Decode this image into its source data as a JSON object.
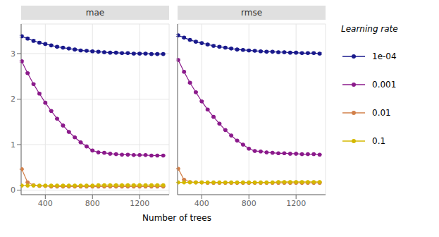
{
  "chart_data": [
    {
      "type": "line",
      "title": "mae",
      "xlabel": "Number of trees",
      "grid": true,
      "marker": "circle",
      "x": [
        200,
        250,
        300,
        350,
        400,
        450,
        500,
        550,
        600,
        650,
        700,
        750,
        800,
        850,
        900,
        950,
        1000,
        1050,
        1100,
        1150,
        1200,
        1250,
        1300,
        1350,
        1400
      ],
      "xlim": [
        195,
        1450
      ],
      "xticks": [
        400,
        800,
        1200
      ],
      "ylim": [
        -0.1,
        3.65
      ],
      "yticks": [
        0,
        1,
        2,
        3
      ],
      "series": [
        {
          "name": "1e-04",
          "color": "#1a1a8c",
          "values": [
            3.38,
            3.33,
            3.28,
            3.24,
            3.21,
            3.18,
            3.15,
            3.13,
            3.11,
            3.09,
            3.07,
            3.06,
            3.05,
            3.04,
            3.03,
            3.02,
            3.02,
            3.01,
            3.01,
            3.0,
            3.0,
            3.0,
            2.99,
            2.99,
            2.99
          ],
          "errors": [
            0.0199,
            0.01965,
            0.0194,
            0.0192,
            0.01905,
            0.0189,
            0.01875,
            0.01865,
            0.01855,
            0.01845,
            0.01835,
            0.0183,
            0.01825,
            0.0182,
            0.01815,
            0.0181,
            0.0181,
            0.01805,
            0.01805,
            0.018,
            0.018,
            0.018,
            0.01795,
            0.01795,
            0.01795
          ]
        },
        {
          "name": "0.001",
          "color": "#8b1a8b",
          "values": [
            2.83,
            2.57,
            2.33,
            2.12,
            1.92,
            1.74,
            1.57,
            1.42,
            1.28,
            1.16,
            1.05,
            0.96,
            0.87,
            0.83,
            0.82,
            0.8,
            0.79,
            0.78,
            0.78,
            0.77,
            0.77,
            0.77,
            0.76,
            0.76,
            0.76
          ],
          "errors": [
            0.01715,
            0.01585,
            0.01465,
            0.0136,
            0.0126,
            0.0117,
            0.01085,
            0.0101,
            0.0094,
            0.0088,
            0.00825,
            0.0078,
            0.00735,
            0.00715,
            0.0071,
            0.007,
            0.00695,
            0.0069,
            0.0069,
            0.00685,
            0.00685,
            0.00685,
            0.0068,
            0.0068,
            0.0068
          ]
        },
        {
          "name": "0.01",
          "color": "#d2804a",
          "values": [
            0.46,
            0.17,
            0.11,
            0.09,
            0.09,
            0.08,
            0.08,
            0.08,
            0.08,
            0.08,
            0.08,
            0.08,
            0.08,
            0.08,
            0.08,
            0.08,
            0.08,
            0.08,
            0.08,
            0.08,
            0.08,
            0.08,
            0.08,
            0.08,
            0.08
          ],
          "errors": [
            0.0053,
            0.00385,
            0.00355,
            0.00345,
            0.00345,
            0.0034,
            0.0034,
            0.0034,
            0.0034,
            0.0034,
            0.0034,
            0.0034,
            0.0034,
            0.0034,
            0.0034,
            0.0034,
            0.0034,
            0.0034,
            0.0034,
            0.0034,
            0.0034,
            0.0034,
            0.0034,
            0.0034,
            0.0034
          ]
        },
        {
          "name": "0.1",
          "color": "#d4b800",
          "values": [
            0.1,
            0.1,
            0.1,
            0.1,
            0.1,
            0.1,
            0.1,
            0.1,
            0.1,
            0.1,
            0.1,
            0.1,
            0.1,
            0.11,
            0.11,
            0.11,
            0.11,
            0.11,
            0.11,
            0.11,
            0.11,
            0.11,
            0.11,
            0.11,
            0.11
          ],
          "errors": [
            0.0035,
            0.0035,
            0.0035,
            0.0035,
            0.0035,
            0.0035,
            0.0035,
            0.0035,
            0.0035,
            0.0035,
            0.0035,
            0.0035,
            0.0035,
            0.00355,
            0.00355,
            0.00355,
            0.00355,
            0.00355,
            0.00355,
            0.00355,
            0.00355,
            0.00355,
            0.00355,
            0.00355,
            0.00355
          ]
        }
      ]
    },
    {
      "type": "line",
      "title": "rmse",
      "grid": true,
      "marker": "circle",
      "tick_labels": "x",
      "legend": "right",
      "legend_title": "Learning rate",
      "x": [
        200,
        250,
        300,
        350,
        400,
        450,
        500,
        550,
        600,
        650,
        700,
        750,
        800,
        850,
        900,
        950,
        1000,
        1050,
        1100,
        1150,
        1200,
        1250,
        1300,
        1350,
        1400
      ],
      "xlim": [
        195,
        1450
      ],
      "xticks": [
        400,
        800,
        1200
      ],
      "ylim": [
        -0.1,
        3.65
      ],
      "yticks": [
        0,
        1,
        2,
        3
      ],
      "series": [
        {
          "name": "1e-04",
          "color": "#1a1a8c",
          "values": [
            3.4,
            3.35,
            3.3,
            3.26,
            3.23,
            3.2,
            3.17,
            3.15,
            3.13,
            3.11,
            3.09,
            3.08,
            3.07,
            3.06,
            3.05,
            3.04,
            3.04,
            3.03,
            3.03,
            3.02,
            3.02,
            3.01,
            3.01,
            3.01,
            3.0
          ],
          "errors": [
            0.02,
            0.01975,
            0.0195,
            0.0193,
            0.01915,
            0.019,
            0.01885,
            0.01875,
            0.01865,
            0.01855,
            0.01845,
            0.0184,
            0.01835,
            0.0183,
            0.01825,
            0.0182,
            0.0182,
            0.01815,
            0.01815,
            0.0181,
            0.0181,
            0.01805,
            0.01805,
            0.01805,
            0.018
          ]
        },
        {
          "name": "0.001",
          "color": "#8b1a8b",
          "values": [
            2.86,
            2.6,
            2.36,
            2.15,
            1.95,
            1.77,
            1.61,
            1.46,
            1.32,
            1.2,
            1.09,
            1.0,
            0.91,
            0.86,
            0.85,
            0.83,
            0.82,
            0.81,
            0.81,
            0.8,
            0.8,
            0.79,
            0.79,
            0.79,
            0.78
          ],
          "errors": [
            0.0173,
            0.016,
            0.0148,
            0.01375,
            0.01275,
            0.01185,
            0.01105,
            0.0103,
            0.0096,
            0.009,
            0.00845,
            0.008,
            0.00755,
            0.0073,
            0.00725,
            0.00715,
            0.0071,
            0.00705,
            0.00705,
            0.007,
            0.007,
            0.00695,
            0.00695,
            0.00695,
            0.0069
          ]
        },
        {
          "name": "0.01",
          "color": "#d2804a",
          "values": [
            0.47,
            0.23,
            0.18,
            0.17,
            0.17,
            0.16,
            0.16,
            0.16,
            0.16,
            0.16,
            0.16,
            0.16,
            0.16,
            0.16,
            0.16,
            0.16,
            0.16,
            0.16,
            0.16,
            0.16,
            0.16,
            0.16,
            0.16,
            0.16,
            0.16
          ],
          "errors": [
            0.00535,
            0.00415,
            0.0039,
            0.00385,
            0.00385,
            0.0038,
            0.0038,
            0.0038,
            0.0038,
            0.0038,
            0.0038,
            0.0038,
            0.0038,
            0.0038,
            0.0038,
            0.0038,
            0.0038,
            0.0038,
            0.0038,
            0.0038,
            0.0038,
            0.0038,
            0.0038,
            0.0038,
            0.0038
          ]
        },
        {
          "name": "0.1",
          "color": "#d4b800",
          "values": [
            0.17,
            0.17,
            0.17,
            0.17,
            0.17,
            0.17,
            0.17,
            0.17,
            0.17,
            0.17,
            0.17,
            0.17,
            0.17,
            0.17,
            0.17,
            0.17,
            0.17,
            0.18,
            0.18,
            0.18,
            0.18,
            0.18,
            0.18,
            0.18,
            0.18
          ],
          "errors": [
            0.00385,
            0.00385,
            0.00385,
            0.00385,
            0.00385,
            0.00385,
            0.00385,
            0.00385,
            0.00385,
            0.00385,
            0.00385,
            0.00385,
            0.00385,
            0.00385,
            0.00385,
            0.00385,
            0.00385,
            0.0039,
            0.0039,
            0.0039,
            0.0039,
            0.0039,
            0.0039,
            0.0039,
            0.0039
          ]
        }
      ]
    }
  ]
}
